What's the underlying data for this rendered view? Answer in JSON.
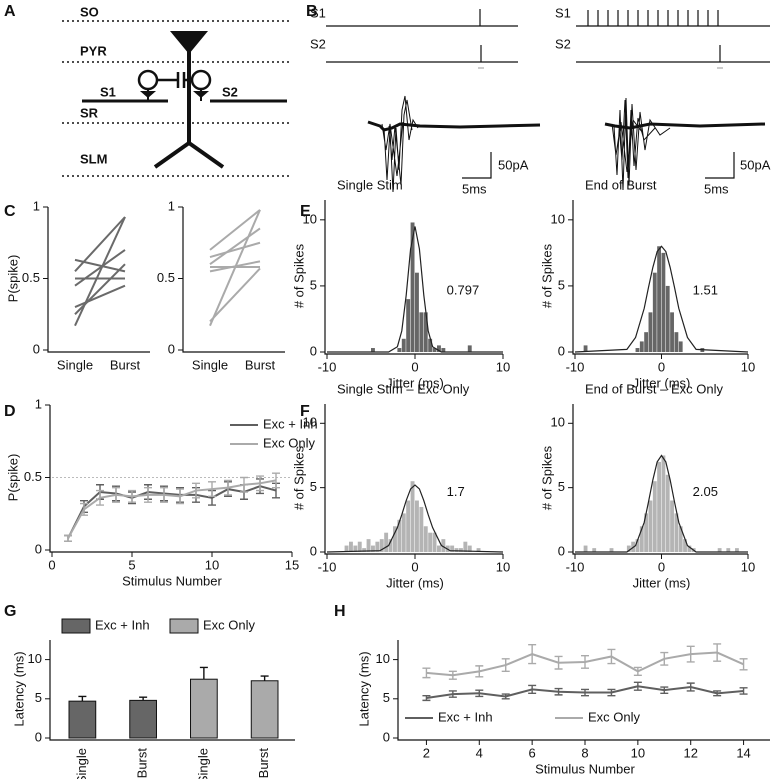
{
  "panel_labels": [
    "A",
    "B",
    "C",
    "D",
    "E",
    "F",
    "G",
    "H"
  ],
  "diagram": {
    "layers": [
      "SO",
      "PYR",
      "SR",
      "SLM"
    ],
    "inputs": [
      "S1",
      "S2"
    ]
  },
  "stimulus": {
    "channels": [
      "S1",
      "S2",
      "S1",
      "S2"
    ]
  },
  "scale_bars": [
    {
      "current": "50pA",
      "time": "5ms"
    },
    {
      "current": "50pA",
      "time": "5ms"
    }
  ],
  "chart_data": [
    {
      "type": "line",
      "categories": [
        "Single",
        "Burst"
      ],
      "ylabel": "P(spike)",
      "ylim": [
        0,
        1
      ],
      "yticks": [
        0,
        0.5,
        1
      ],
      "series": [
        {
          "color": "#6a6a6a",
          "values": [
            0.17,
            0.93
          ]
        },
        {
          "color": "#6a6a6a",
          "values": [
            0.25,
            0.6
          ]
        },
        {
          "color": "#6a6a6a",
          "values": [
            0.3,
            0.45
          ]
        },
        {
          "color": "#6a6a6a",
          "values": [
            0.45,
            0.7
          ]
        },
        {
          "color": "#6a6a6a",
          "values": [
            0.5,
            0.5
          ]
        },
        {
          "color": "#6a6a6a",
          "values": [
            0.55,
            0.93
          ]
        },
        {
          "color": "#6a6a6a",
          "values": [
            0.63,
            0.55
          ]
        }
      ]
    },
    {
      "type": "line",
      "categories": [
        "Single",
        "Burst"
      ],
      "ylim": [
        0,
        1
      ],
      "yticks": [
        0,
        0.5,
        1
      ],
      "series": [
        {
          "color": "#aaaaaa",
          "values": [
            0.17,
            0.98
          ]
        },
        {
          "color": "#aaaaaa",
          "values": [
            0.2,
            0.57
          ]
        },
        {
          "color": "#aaaaaa",
          "values": [
            0.55,
            0.62
          ]
        },
        {
          "color": "#aaaaaa",
          "values": [
            0.58,
            0.58
          ]
        },
        {
          "color": "#aaaaaa",
          "values": [
            0.6,
            0.85
          ]
        },
        {
          "color": "#aaaaaa",
          "values": [
            0.65,
            0.75
          ]
        },
        {
          "color": "#aaaaaa",
          "values": [
            0.7,
            0.98
          ]
        }
      ]
    },
    {
      "type": "line",
      "xlabel": "Stimulus Number",
      "ylabel": "P(spike)",
      "x": [
        1,
        2,
        3,
        4,
        5,
        6,
        7,
        8,
        9,
        10,
        11,
        12,
        13,
        14
      ],
      "xlim": [
        0,
        15
      ],
      "xticks": [
        0,
        5,
        10,
        15
      ],
      "ylim": [
        0,
        1
      ],
      "yticks": [
        0,
        0.5,
        1
      ],
      "reference_line": 0.5,
      "legend": "upper right",
      "series": [
        {
          "name": "Exc + Inh",
          "color": "#5f5f5f",
          "values": [
            0.08,
            0.3,
            0.4,
            0.39,
            0.36,
            0.4,
            0.39,
            0.38,
            0.38,
            0.36,
            0.42,
            0.4,
            0.44,
            0.41
          ],
          "errors": [
            0.02,
            0.04,
            0.05,
            0.05,
            0.04,
            0.05,
            0.05,
            0.05,
            0.05,
            0.05,
            0.05,
            0.05,
            0.05,
            0.05
          ]
        },
        {
          "name": "Exc Only",
          "color": "#aaaaaa",
          "values": [
            0.08,
            0.28,
            0.36,
            0.38,
            0.37,
            0.38,
            0.38,
            0.37,
            0.41,
            0.42,
            0.43,
            0.45,
            0.46,
            0.48
          ],
          "errors": [
            0.02,
            0.04,
            0.05,
            0.05,
            0.04,
            0.05,
            0.05,
            0.05,
            0.05,
            0.05,
            0.05,
            0.05,
            0.05,
            0.05
          ]
        }
      ]
    },
    {
      "type": "histogram",
      "title": "Single Stim",
      "annotation": "0.797",
      "xlabel": "Jitter (ms)",
      "ylabel": "# of Spikes",
      "color": "#666666",
      "xlim": [
        -10,
        10
      ],
      "xticks": [
        -10,
        0,
        10
      ],
      "ylim": [
        0,
        11.5
      ],
      "yticks": [
        0,
        5,
        10
      ],
      "bins": [
        -10,
        -9.5,
        -9,
        -8.5,
        -8,
        -7.5,
        -7,
        -6.5,
        -6,
        -5.5,
        -5,
        -4.5,
        -4,
        -3.5,
        -3,
        -2.5,
        -2,
        -1.5,
        -1,
        -0.5,
        0,
        0.5,
        1,
        1.5,
        2,
        2.5,
        3,
        3.5,
        4,
        4.5,
        5,
        5.5,
        6,
        6.5,
        7,
        7.5,
        8,
        8.5,
        9,
        9.5,
        10
      ],
      "counts": [
        0,
        0,
        0,
        0,
        0,
        0,
        0,
        0,
        0,
        0,
        0.3,
        0,
        0,
        0,
        0,
        0,
        0.3,
        1,
        4,
        9.8,
        6,
        3,
        3,
        1,
        0.3,
        0.5,
        0.3,
        0,
        0,
        0,
        0,
        0,
        0.5,
        0,
        0,
        0,
        0,
        0,
        0,
        0
      ],
      "fit": {
        "x": [
          -10,
          -4,
          -3,
          -2,
          -1.5,
          -1,
          -0.5,
          0,
          0.5,
          1,
          1.5,
          2,
          3,
          4,
          10
        ],
        "values": [
          0,
          0,
          0,
          0.4,
          1.6,
          4.3,
          7.8,
          9.5,
          7.8,
          4.3,
          1.6,
          0.4,
          0,
          0,
          0
        ]
      }
    },
    {
      "type": "histogram",
      "title": "End of Burst",
      "annotation": "1.51",
      "xlabel": "Jitter (ms)",
      "ylabel": "# of Spikes",
      "color": "#666666",
      "xlim": [
        -10,
        10
      ],
      "xticks": [
        -10,
        0,
        10
      ],
      "ylim": [
        0,
        11.5
      ],
      "yticks": [
        0,
        5,
        10
      ],
      "bins": [
        -10,
        -9.5,
        -9,
        -8.5,
        -8,
        -7.5,
        -7,
        -6.5,
        -6,
        -5.5,
        -5,
        -4.5,
        -4,
        -3.5,
        -3,
        -2.5,
        -2,
        -1.5,
        -1,
        -0.5,
        0,
        0.5,
        1,
        1.5,
        2,
        2.5,
        3,
        3.5,
        4,
        4.5,
        5,
        5.5,
        6,
        6.5,
        7,
        7.5,
        8,
        8.5,
        9,
        9.5,
        10
      ],
      "counts": [
        0,
        0,
        0.5,
        0,
        0,
        0,
        0,
        0,
        0,
        0,
        0,
        0,
        0,
        0,
        0.3,
        0.8,
        1.5,
        3,
        6,
        8,
        7.5,
        5,
        3,
        1.5,
        0.8,
        0,
        0,
        0,
        0,
        0.3,
        0,
        0,
        0,
        0,
        0,
        0,
        0,
        0,
        0,
        0
      ],
      "fit": {
        "x": [
          -10,
          -4,
          -3,
          -2,
          -1.5,
          -1,
          -0.5,
          0,
          0.5,
          1,
          1.5,
          2,
          3,
          4,
          10
        ],
        "values": [
          0,
          0.2,
          1.1,
          3.3,
          4.9,
          6.4,
          7.6,
          8,
          7.6,
          6.4,
          4.9,
          3.3,
          1.1,
          0.2,
          0
        ]
      }
    },
    {
      "type": "histogram",
      "title": "Single Stim – Exc Only",
      "annotation": "1.7",
      "xlabel": "Jitter (ms)",
      "ylabel": "# of Spikes",
      "color": "#b4b4b4",
      "xlim": [
        -10,
        10
      ],
      "xticks": [
        -10,
        0,
        10
      ],
      "ylim": [
        0,
        11.5
      ],
      "yticks": [
        0,
        5,
        10
      ],
      "bins": [
        -10,
        -9.5,
        -9,
        -8.5,
        -8,
        -7.5,
        -7,
        -6.5,
        -6,
        -5.5,
        -5,
        -4.5,
        -4,
        -3.5,
        -3,
        -2.5,
        -2,
        -1.5,
        -1,
        -0.5,
        0,
        0.5,
        1,
        1.5,
        2,
        2.5,
        3,
        3.5,
        4,
        4.5,
        5,
        5.5,
        6,
        6.5,
        7,
        7.5,
        8,
        8.5,
        9,
        9.5,
        10
      ],
      "counts": [
        0,
        0,
        0,
        0,
        0.5,
        0.8,
        0.5,
        0.8,
        0.3,
        1,
        0.5,
        0.8,
        1,
        1.5,
        1,
        2,
        2.5,
        3,
        4,
        5.5,
        4,
        3.5,
        2,
        1.5,
        1.5,
        0.5,
        1,
        0.5,
        0.5,
        0.3,
        0.3,
        0.8,
        0.5,
        0,
        0.3,
        0,
        0,
        0,
        0,
        0
      ],
      "fit": {
        "x": [
          -10,
          -4,
          -3,
          -2,
          -1.5,
          -1,
          -0.5,
          0,
          0.5,
          1,
          1.5,
          2,
          3,
          4,
          10
        ],
        "values": [
          0,
          0.1,
          0.5,
          1.9,
          2.9,
          4,
          4.9,
          5.2,
          4.9,
          4,
          2.9,
          1.9,
          0.5,
          0.1,
          0
        ]
      }
    },
    {
      "type": "histogram",
      "title": "End of Burst – Exc Only",
      "annotation": "2.05",
      "xlabel": "Jitter (ms)",
      "ylabel": "# of Spikes",
      "color": "#b4b4b4",
      "xlim": [
        -10,
        10
      ],
      "xticks": [
        -10,
        0,
        10
      ],
      "ylim": [
        0,
        11.5
      ],
      "yticks": [
        0,
        5,
        10
      ],
      "bins": [
        -10,
        -9.5,
        -9,
        -8.5,
        -8,
        -7.5,
        -7,
        -6.5,
        -6,
        -5.5,
        -5,
        -4.5,
        -4,
        -3.5,
        -3,
        -2.5,
        -2,
        -1.5,
        -1,
        -0.5,
        0,
        0.5,
        1,
        1.5,
        2,
        2.5,
        3,
        3.5,
        4,
        4.5,
        5,
        5.5,
        6,
        6.5,
        7,
        7.5,
        8,
        8.5,
        9,
        9.5,
        10
      ],
      "counts": [
        0,
        0,
        0.5,
        0,
        0.3,
        0,
        0,
        0,
        0.3,
        0,
        0,
        0,
        0.5,
        0.8,
        1,
        2,
        3,
        4,
        5.5,
        7,
        7.5,
        6,
        4,
        3,
        2,
        1,
        0.5,
        0.3,
        0,
        0,
        0,
        0,
        0,
        0.3,
        0,
        0.3,
        0,
        0.3,
        0,
        0
      ],
      "fit": {
        "x": [
          -10,
          -4,
          -3,
          -2,
          -1.5,
          -1,
          -0.5,
          0,
          0.5,
          1,
          1.5,
          2,
          3,
          4,
          10
        ],
        "values": [
          0,
          0,
          0.5,
          2.3,
          3.9,
          5.6,
          7,
          7.5,
          7,
          5.6,
          3.9,
          2.3,
          0.5,
          0,
          0
        ]
      }
    },
    {
      "type": "bar",
      "categories": [
        "Single",
        "Burst",
        "Single",
        "Burst"
      ],
      "ylabel": "Latency (ms)",
      "ylim": [
        0,
        12.5
      ],
      "yticks": [
        0,
        5,
        10
      ],
      "legend": "upper center",
      "series": [
        {
          "name": "Exc + Inh",
          "color": "#666666",
          "values": [
            4.7,
            4.8,
            null,
            null
          ],
          "errors": [
            0.6,
            0.4,
            null,
            null
          ]
        },
        {
          "name": "Exc Only",
          "color": "#aaaaaa",
          "values": [
            null,
            null,
            7.5,
            7.3
          ],
          "errors": [
            null,
            null,
            1.5,
            0.6
          ]
        }
      ]
    },
    {
      "type": "line",
      "xlabel": "Stimulus Number",
      "ylabel": "Latency (ms)",
      "x": [
        2,
        3,
        4,
        5,
        6,
        7,
        8,
        9,
        10,
        11,
        12,
        13,
        14
      ],
      "xlim": [
        1,
        15
      ],
      "xticks": [
        2,
        4,
        6,
        8,
        10,
        12,
        14
      ],
      "ylim": [
        0,
        12.5
      ],
      "yticks": [
        0,
        5,
        10
      ],
      "legend": "lower center",
      "series": [
        {
          "name": "Exc + Inh",
          "color": "#5f5f5f",
          "values": [
            5.1,
            5.6,
            5.7,
            5.3,
            6.2,
            5.9,
            5.8,
            5.8,
            6.6,
            6.1,
            6.5,
            5.7,
            6.0
          ],
          "errors": [
            0.3,
            0.4,
            0.4,
            0.3,
            0.5,
            0.4,
            0.4,
            0.4,
            0.5,
            0.4,
            0.5,
            0.3,
            0.4
          ]
        },
        {
          "name": "Exc Only",
          "color": "#aaaaaa",
          "values": [
            8.3,
            8.0,
            8.5,
            9.3,
            10.7,
            9.6,
            9.7,
            10.4,
            8.5,
            10.1,
            10.7,
            10.9,
            9.4
          ],
          "errors": [
            0.6,
            0.5,
            0.7,
            0.8,
            1.2,
            0.8,
            0.8,
            0.9,
            0.5,
            0.8,
            1.0,
            1.1,
            0.7
          ]
        }
      ]
    }
  ]
}
